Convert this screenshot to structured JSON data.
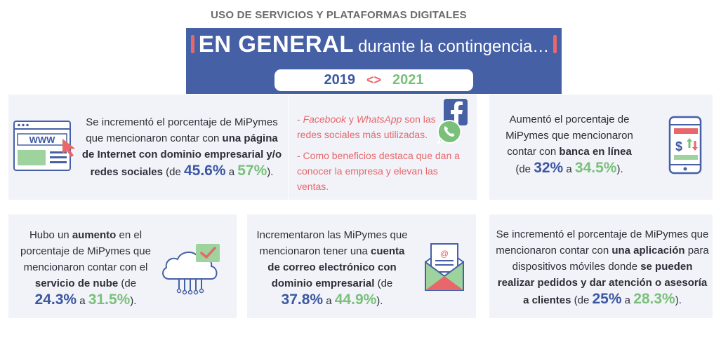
{
  "page_title": "USO DE SERVICIOS Y PLATAFORMAS DIGITALES",
  "banner": {
    "headline_bold": "EN GENERAL",
    "headline_rest": "durante la contingencia…",
    "year_start": "2019",
    "year_arrows": "<>",
    "year_end": "2021"
  },
  "colors": {
    "banner_blue": "#4660a6",
    "accent_red": "#e7676a",
    "value_blue": "#3c57a1",
    "value_green": "#7ac07a",
    "card_bg": "#f1f3f9"
  },
  "cards": {
    "website": {
      "icon": "web-browser-www-icon",
      "text_1": "Se incrementó el porcentaje de MiPymes que mencionaron contar con ",
      "text_bold": "una página de Internet con dominio empresarial y/o redes sociales",
      "text_2": " (de ",
      "value_2019": "45.6%",
      "text_3": " a ",
      "value_2021": "57%",
      "text_4": ")."
    },
    "social": {
      "icons": [
        "facebook-icon",
        "whatsapp-icon"
      ],
      "line1_dash": "- ",
      "facebook": "Facebook",
      "y": " y ",
      "whatsapp": "WhatsApp",
      "line1_rest": " son las redes sociales más utilizadas.",
      "line2": "- Como beneficios destaca que dan a conocer la empresa y elevan las ventas."
    },
    "banking": {
      "icon": "mobile-banking-icon",
      "text_1": "Aumentó el porcentaje de MiPymes que mencionaron contar con ",
      "text_bold": "banca en línea",
      "text_2": " (de ",
      "value_2019": "32%",
      "text_3": " a ",
      "value_2021": "34.5%",
      "text_4": ")."
    },
    "cloud": {
      "icon": "cloud-service-icon",
      "text_1": "Hubo un ",
      "text_bold_1": "aumento",
      "text_2": " en el porcentaje de MiPymes que mencionaron contar con el ",
      "text_bold_2": "servicio de nube",
      "text_3": " (de ",
      "value_2019": "24.3%",
      "text_4": " a ",
      "value_2021": "31.5%",
      "text_5": ")."
    },
    "email": {
      "icon": "email-envelope-icon",
      "text_1": "Incrementaron las MiPymes que mencionaron tener una ",
      "text_bold": "cuenta de correo electrónico con dominio empresarial",
      "text_2": " (de ",
      "value_2019": "37.8%",
      "text_3": " a ",
      "value_2021": "44.9%",
      "text_4": ")."
    },
    "app": {
      "text_1": "Se incrementó el porcentaje de MiPymes que mencionaron contar con ",
      "text_bold_1": "una aplicación",
      "text_2": " para dispositivos móviles donde ",
      "text_bold_2": "se pueden realizar pedidos y dar atención o asesoría a clientes",
      "text_3": " (de ",
      "value_2019": "25%",
      "text_4": " a ",
      "value_2021": "28.3%",
      "text_5": ")."
    }
  }
}
